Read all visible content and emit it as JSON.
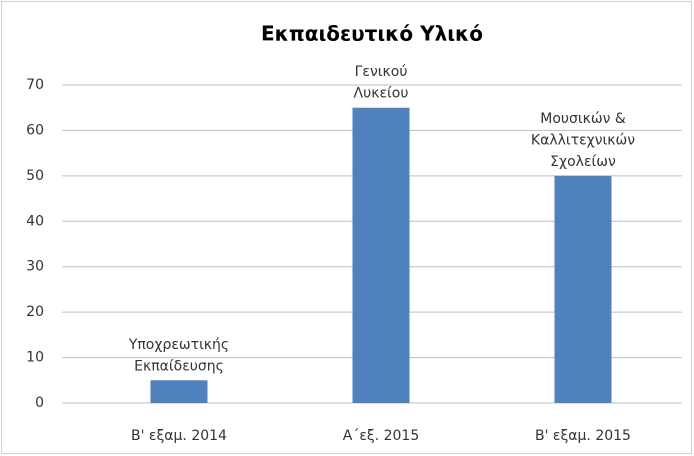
{
  "chart_data": {
    "type": "bar",
    "title": "Εκπαιδευτικό Υλικό",
    "categories": [
      "Β' εξαμ. 2014",
      "Α΄εξ. 2015",
      "Β' εξαμ. 2015"
    ],
    "values": [
      5,
      65,
      50
    ],
    "color": "#4f81bd",
    "annotations": [
      [
        "Υποχρεωτικής",
        "Εκπαίδευσης"
      ],
      [
        "Γενικού",
        "Λυκείου"
      ],
      [
        "Μουσικών &",
        "Καλλιτεχνικών",
        "Σχολείων"
      ]
    ],
    "ylim": [
      0,
      70
    ],
    "yticks": [
      0,
      10,
      20,
      30,
      40,
      50,
      60,
      70
    ],
    "grid": true
  }
}
